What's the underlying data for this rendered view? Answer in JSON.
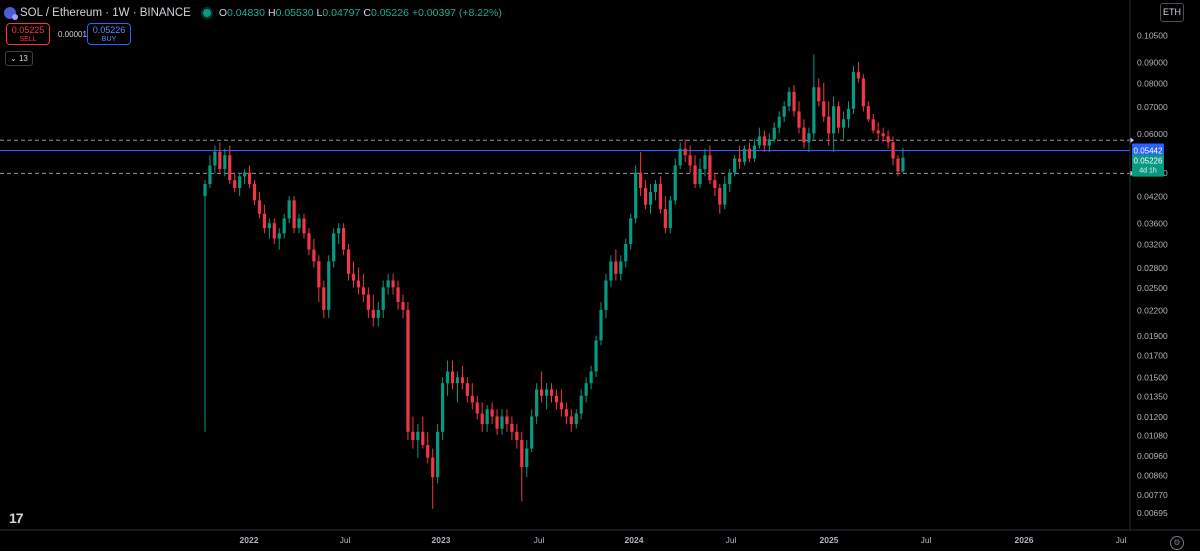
{
  "header": {
    "symbol_title": "SOL / Ethereum · 1W · BINANCE",
    "open_label": "O",
    "open": "0.04830",
    "high_label": "H",
    "high": "0.05530",
    "low_label": "L",
    "low": "0.04797",
    "close_label": "C",
    "close": "0.05226",
    "change": "+0.00397 (+8.22%)"
  },
  "trade": {
    "sell_price": "0.05225",
    "sell_label": "SELL",
    "spread": "0.00001",
    "buy_price": "0.05226",
    "buy_label": "BUY"
  },
  "indicators_toggle": "13",
  "currency_button": "ETH",
  "logo_text": "17",
  "colors": {
    "up": "#089981",
    "down": "#f23645",
    "hline_blue": "#2962ff"
  },
  "chart_data": {
    "type": "candlestick",
    "scale": "log",
    "x_tick_labels": [
      "2022",
      "Jul",
      "2023",
      "Jul",
      "2024",
      "Jul",
      "2025",
      "Jul",
      "2026",
      "Jul"
    ],
    "y_tick_labels": [
      "0.10500",
      "0.09000",
      "0.08000",
      "0.07000",
      "0.06000",
      "0.04800",
      "0.04200",
      "0.03600",
      "0.03200",
      "0.02800",
      "0.02500",
      "0.02200",
      "0.01900",
      "0.01700",
      "0.01500",
      "0.01350",
      "0.01200",
      "0.01080",
      "0.00960",
      "0.00860",
      "0.00770",
      "0.00695"
    ],
    "ylim": [
      0.0067,
      0.108
    ],
    "horizontal_lines": [
      {
        "price": 0.0577,
        "style": "dashed",
        "color": "#9598a1"
      },
      {
        "price": 0.05442,
        "style": "solid",
        "color": "#2962ff",
        "label": "0.05442"
      },
      {
        "price": 0.0478,
        "style": "dashed",
        "color": "#9598a1"
      }
    ],
    "last_price": {
      "value": "0.05226",
      "countdown": "4d 1h"
    },
    "candles": [
      {
        "o": 0.042,
        "h": 0.046,
        "l": 0.011,
        "c": 0.045
      },
      {
        "o": 0.045,
        "h": 0.053,
        "l": 0.044,
        "c": 0.05
      },
      {
        "o": 0.05,
        "h": 0.056,
        "l": 0.048,
        "c": 0.054
      },
      {
        "o": 0.054,
        "h": 0.057,
        "l": 0.048,
        "c": 0.049
      },
      {
        "o": 0.049,
        "h": 0.055,
        "l": 0.047,
        "c": 0.053
      },
      {
        "o": 0.053,
        "h": 0.056,
        "l": 0.045,
        "c": 0.046
      },
      {
        "o": 0.046,
        "h": 0.048,
        "l": 0.043,
        "c": 0.044
      },
      {
        "o": 0.044,
        "h": 0.048,
        "l": 0.042,
        "c": 0.047
      },
      {
        "o": 0.047,
        "h": 0.049,
        "l": 0.045,
        "c": 0.048
      },
      {
        "o": 0.048,
        "h": 0.05,
        "l": 0.044,
        "c": 0.045
      },
      {
        "o": 0.045,
        "h": 0.046,
        "l": 0.04,
        "c": 0.041
      },
      {
        "o": 0.041,
        "h": 0.043,
        "l": 0.037,
        "c": 0.038
      },
      {
        "o": 0.038,
        "h": 0.04,
        "l": 0.034,
        "c": 0.035
      },
      {
        "o": 0.035,
        "h": 0.037,
        "l": 0.033,
        "c": 0.036
      },
      {
        "o": 0.036,
        "h": 0.037,
        "l": 0.032,
        "c": 0.033
      },
      {
        "o": 0.033,
        "h": 0.035,
        "l": 0.031,
        "c": 0.034
      },
      {
        "o": 0.034,
        "h": 0.038,
        "l": 0.033,
        "c": 0.037
      },
      {
        "o": 0.037,
        "h": 0.042,
        "l": 0.036,
        "c": 0.041
      },
      {
        "o": 0.041,
        "h": 0.042,
        "l": 0.034,
        "c": 0.035
      },
      {
        "o": 0.035,
        "h": 0.038,
        "l": 0.034,
        "c": 0.037
      },
      {
        "o": 0.037,
        "h": 0.038,
        "l": 0.033,
        "c": 0.034
      },
      {
        "o": 0.034,
        "h": 0.035,
        "l": 0.03,
        "c": 0.031
      },
      {
        "o": 0.031,
        "h": 0.033,
        "l": 0.028,
        "c": 0.029
      },
      {
        "o": 0.029,
        "h": 0.03,
        "l": 0.023,
        "c": 0.025
      },
      {
        "o": 0.025,
        "h": 0.026,
        "l": 0.021,
        "c": 0.022
      },
      {
        "o": 0.022,
        "h": 0.03,
        "l": 0.021,
        "c": 0.029
      },
      {
        "o": 0.029,
        "h": 0.035,
        "l": 0.028,
        "c": 0.034
      },
      {
        "o": 0.034,
        "h": 0.036,
        "l": 0.032,
        "c": 0.035
      },
      {
        "o": 0.035,
        "h": 0.036,
        "l": 0.03,
        "c": 0.031
      },
      {
        "o": 0.031,
        "h": 0.032,
        "l": 0.026,
        "c": 0.027
      },
      {
        "o": 0.027,
        "h": 0.029,
        "l": 0.025,
        "c": 0.026
      },
      {
        "o": 0.026,
        "h": 0.028,
        "l": 0.024,
        "c": 0.025
      },
      {
        "o": 0.025,
        "h": 0.027,
        "l": 0.023,
        "c": 0.024
      },
      {
        "o": 0.024,
        "h": 0.025,
        "l": 0.021,
        "c": 0.022
      },
      {
        "o": 0.022,
        "h": 0.024,
        "l": 0.02,
        "c": 0.021
      },
      {
        "o": 0.021,
        "h": 0.023,
        "l": 0.02,
        "c": 0.022
      },
      {
        "o": 0.022,
        "h": 0.026,
        "l": 0.021,
        "c": 0.025
      },
      {
        "o": 0.025,
        "h": 0.027,
        "l": 0.024,
        "c": 0.026
      },
      {
        "o": 0.026,
        "h": 0.027,
        "l": 0.024,
        "c": 0.025
      },
      {
        "o": 0.025,
        "h": 0.026,
        "l": 0.022,
        "c": 0.023
      },
      {
        "o": 0.023,
        "h": 0.024,
        "l": 0.021,
        "c": 0.022
      },
      {
        "o": 0.022,
        "h": 0.023,
        "l": 0.0105,
        "c": 0.011
      },
      {
        "o": 0.011,
        "h": 0.012,
        "l": 0.01,
        "c": 0.0105
      },
      {
        "o": 0.0105,
        "h": 0.0115,
        "l": 0.0095,
        "c": 0.011
      },
      {
        "o": 0.011,
        "h": 0.012,
        "l": 0.01,
        "c": 0.0102
      },
      {
        "o": 0.0102,
        "h": 0.011,
        "l": 0.0092,
        "c": 0.0095
      },
      {
        "o": 0.0095,
        "h": 0.01,
        "l": 0.0071,
        "c": 0.0085
      },
      {
        "o": 0.0085,
        "h": 0.0115,
        "l": 0.0082,
        "c": 0.011
      },
      {
        "o": 0.011,
        "h": 0.015,
        "l": 0.0105,
        "c": 0.0145
      },
      {
        "o": 0.0145,
        "h": 0.0165,
        "l": 0.0135,
        "c": 0.0155
      },
      {
        "o": 0.0155,
        "h": 0.0165,
        "l": 0.014,
        "c": 0.0145
      },
      {
        "o": 0.0145,
        "h": 0.0155,
        "l": 0.013,
        "c": 0.015
      },
      {
        "o": 0.015,
        "h": 0.016,
        "l": 0.014,
        "c": 0.0145
      },
      {
        "o": 0.0145,
        "h": 0.015,
        "l": 0.013,
        "c": 0.0135
      },
      {
        "o": 0.0135,
        "h": 0.0145,
        "l": 0.0125,
        "c": 0.013
      },
      {
        "o": 0.013,
        "h": 0.0135,
        "l": 0.0118,
        "c": 0.0122
      },
      {
        "o": 0.0122,
        "h": 0.013,
        "l": 0.011,
        "c": 0.0115
      },
      {
        "o": 0.0115,
        "h": 0.0128,
        "l": 0.011,
        "c": 0.0125
      },
      {
        "o": 0.0125,
        "h": 0.013,
        "l": 0.0115,
        "c": 0.012
      },
      {
        "o": 0.012,
        "h": 0.0125,
        "l": 0.0108,
        "c": 0.0112
      },
      {
        "o": 0.0112,
        "h": 0.0125,
        "l": 0.0108,
        "c": 0.012
      },
      {
        "o": 0.012,
        "h": 0.0125,
        "l": 0.011,
        "c": 0.0115
      },
      {
        "o": 0.0115,
        "h": 0.012,
        "l": 0.0105,
        "c": 0.011
      },
      {
        "o": 0.011,
        "h": 0.0115,
        "l": 0.01,
        "c": 0.0105
      },
      {
        "o": 0.0105,
        "h": 0.011,
        "l": 0.0074,
        "c": 0.009
      },
      {
        "o": 0.009,
        "h": 0.0105,
        "l": 0.0085,
        "c": 0.01
      },
      {
        "o": 0.01,
        "h": 0.0125,
        "l": 0.0098,
        "c": 0.012
      },
      {
        "o": 0.012,
        "h": 0.0145,
        "l": 0.0115,
        "c": 0.014
      },
      {
        "o": 0.014,
        "h": 0.0155,
        "l": 0.013,
        "c": 0.0135
      },
      {
        "o": 0.0135,
        "h": 0.0145,
        "l": 0.0125,
        "c": 0.014
      },
      {
        "o": 0.014,
        "h": 0.0145,
        "l": 0.013,
        "c": 0.0135
      },
      {
        "o": 0.0135,
        "h": 0.014,
        "l": 0.0125,
        "c": 0.013
      },
      {
        "o": 0.013,
        "h": 0.014,
        "l": 0.012,
        "c": 0.0125
      },
      {
        "o": 0.0125,
        "h": 0.013,
        "l": 0.0115,
        "c": 0.012
      },
      {
        "o": 0.012,
        "h": 0.0125,
        "l": 0.011,
        "c": 0.0115
      },
      {
        "o": 0.0115,
        "h": 0.0125,
        "l": 0.0112,
        "c": 0.0122
      },
      {
        "o": 0.0122,
        "h": 0.014,
        "l": 0.0118,
        "c": 0.0135
      },
      {
        "o": 0.0135,
        "h": 0.015,
        "l": 0.013,
        "c": 0.0145
      },
      {
        "o": 0.0145,
        "h": 0.016,
        "l": 0.014,
        "c": 0.0155
      },
      {
        "o": 0.0155,
        "h": 0.019,
        "l": 0.015,
        "c": 0.0185
      },
      {
        "o": 0.0185,
        "h": 0.023,
        "l": 0.018,
        "c": 0.022
      },
      {
        "o": 0.022,
        "h": 0.027,
        "l": 0.021,
        "c": 0.026
      },
      {
        "o": 0.026,
        "h": 0.03,
        "l": 0.025,
        "c": 0.029
      },
      {
        "o": 0.029,
        "h": 0.031,
        "l": 0.026,
        "c": 0.027
      },
      {
        "o": 0.027,
        "h": 0.03,
        "l": 0.026,
        "c": 0.029
      },
      {
        "o": 0.029,
        "h": 0.033,
        "l": 0.028,
        "c": 0.032
      },
      {
        "o": 0.032,
        "h": 0.038,
        "l": 0.031,
        "c": 0.037
      },
      {
        "o": 0.037,
        "h": 0.05,
        "l": 0.036,
        "c": 0.048
      },
      {
        "o": 0.048,
        "h": 0.054,
        "l": 0.042,
        "c": 0.044
      },
      {
        "o": 0.044,
        "h": 0.046,
        "l": 0.039,
        "c": 0.04
      },
      {
        "o": 0.04,
        "h": 0.045,
        "l": 0.038,
        "c": 0.043
      },
      {
        "o": 0.043,
        "h": 0.046,
        "l": 0.041,
        "c": 0.045
      },
      {
        "o": 0.045,
        "h": 0.047,
        "l": 0.038,
        "c": 0.039
      },
      {
        "o": 0.039,
        "h": 0.042,
        "l": 0.034,
        "c": 0.035
      },
      {
        "o": 0.035,
        "h": 0.042,
        "l": 0.034,
        "c": 0.041
      },
      {
        "o": 0.041,
        "h": 0.052,
        "l": 0.04,
        "c": 0.05
      },
      {
        "o": 0.05,
        "h": 0.057,
        "l": 0.049,
        "c": 0.055
      },
      {
        "o": 0.055,
        "h": 0.058,
        "l": 0.051,
        "c": 0.053
      },
      {
        "o": 0.053,
        "h": 0.056,
        "l": 0.048,
        "c": 0.05
      },
      {
        "o": 0.05,
        "h": 0.053,
        "l": 0.044,
        "c": 0.045
      },
      {
        "o": 0.045,
        "h": 0.052,
        "l": 0.044,
        "c": 0.049
      },
      {
        "o": 0.049,
        "h": 0.055,
        "l": 0.047,
        "c": 0.053
      },
      {
        "o": 0.053,
        "h": 0.056,
        "l": 0.045,
        "c": 0.046
      },
      {
        "o": 0.046,
        "h": 0.048,
        "l": 0.042,
        "c": 0.044
      },
      {
        "o": 0.044,
        "h": 0.045,
        "l": 0.038,
        "c": 0.04
      },
      {
        "o": 0.04,
        "h": 0.047,
        "l": 0.039,
        "c": 0.045
      },
      {
        "o": 0.045,
        "h": 0.049,
        "l": 0.043,
        "c": 0.048
      },
      {
        "o": 0.048,
        "h": 0.053,
        "l": 0.047,
        "c": 0.052
      },
      {
        "o": 0.052,
        "h": 0.056,
        "l": 0.049,
        "c": 0.051
      },
      {
        "o": 0.051,
        "h": 0.056,
        "l": 0.05,
        "c": 0.055
      },
      {
        "o": 0.055,
        "h": 0.057,
        "l": 0.051,
        "c": 0.052
      },
      {
        "o": 0.052,
        "h": 0.058,
        "l": 0.051,
        "c": 0.056
      },
      {
        "o": 0.056,
        "h": 0.062,
        "l": 0.055,
        "c": 0.059
      },
      {
        "o": 0.059,
        "h": 0.061,
        "l": 0.054,
        "c": 0.056
      },
      {
        "o": 0.056,
        "h": 0.06,
        "l": 0.054,
        "c": 0.058
      },
      {
        "o": 0.058,
        "h": 0.064,
        "l": 0.057,
        "c": 0.062
      },
      {
        "o": 0.062,
        "h": 0.068,
        "l": 0.06,
        "c": 0.066
      },
      {
        "o": 0.066,
        "h": 0.072,
        "l": 0.064,
        "c": 0.07
      },
      {
        "o": 0.07,
        "h": 0.078,
        "l": 0.068,
        "c": 0.076
      },
      {
        "o": 0.076,
        "h": 0.079,
        "l": 0.066,
        "c": 0.068
      },
      {
        "o": 0.068,
        "h": 0.072,
        "l": 0.06,
        "c": 0.062
      },
      {
        "o": 0.062,
        "h": 0.065,
        "l": 0.055,
        "c": 0.057
      },
      {
        "o": 0.057,
        "h": 0.062,
        "l": 0.054,
        "c": 0.06
      },
      {
        "o": 0.06,
        "h": 0.094,
        "l": 0.058,
        "c": 0.078
      },
      {
        "o": 0.078,
        "h": 0.082,
        "l": 0.07,
        "c": 0.072
      },
      {
        "o": 0.072,
        "h": 0.08,
        "l": 0.064,
        "c": 0.066
      },
      {
        "o": 0.066,
        "h": 0.072,
        "l": 0.056,
        "c": 0.06
      },
      {
        "o": 0.06,
        "h": 0.074,
        "l": 0.054,
        "c": 0.07
      },
      {
        "o": 0.07,
        "h": 0.072,
        "l": 0.06,
        "c": 0.062
      },
      {
        "o": 0.062,
        "h": 0.068,
        "l": 0.058,
        "c": 0.065
      },
      {
        "o": 0.065,
        "h": 0.072,
        "l": 0.062,
        "c": 0.069
      },
      {
        "o": 0.069,
        "h": 0.088,
        "l": 0.067,
        "c": 0.085
      },
      {
        "o": 0.085,
        "h": 0.09,
        "l": 0.08,
        "c": 0.082
      },
      {
        "o": 0.082,
        "h": 0.084,
        "l": 0.068,
        "c": 0.07
      },
      {
        "o": 0.07,
        "h": 0.072,
        "l": 0.064,
        "c": 0.065
      },
      {
        "o": 0.065,
        "h": 0.067,
        "l": 0.06,
        "c": 0.061
      },
      {
        "o": 0.061,
        "h": 0.064,
        "l": 0.058,
        "c": 0.06
      },
      {
        "o": 0.06,
        "h": 0.062,
        "l": 0.057,
        "c": 0.059
      },
      {
        "o": 0.059,
        "h": 0.061,
        "l": 0.055,
        "c": 0.057
      },
      {
        "o": 0.057,
        "h": 0.059,
        "l": 0.05,
        "c": 0.052
      },
      {
        "o": 0.052,
        "h": 0.053,
        "l": 0.047,
        "c": 0.0483
      },
      {
        "o": 0.0483,
        "h": 0.0553,
        "l": 0.04797,
        "c": 0.05226
      }
    ]
  }
}
